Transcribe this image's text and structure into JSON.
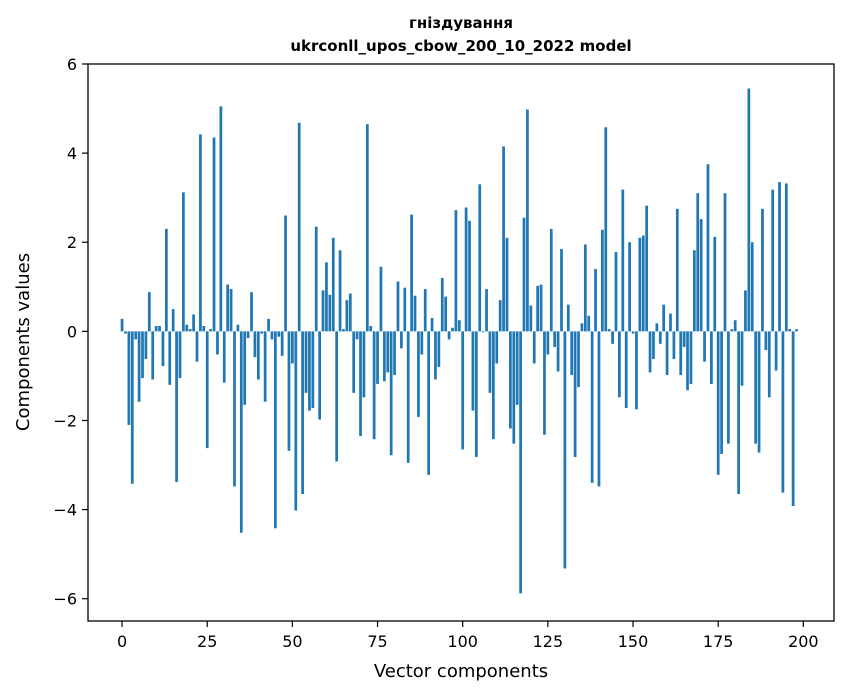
{
  "chart_data": {
    "type": "bar",
    "title": "гніздування",
    "subtitle": "ukrconll_upos_cbow_200_10_2022 model",
    "xlabel": "Vector components",
    "ylabel": "Components values",
    "xlim": [
      -10,
      209
    ],
    "ylim": [
      -6.5,
      6
    ],
    "xticks": [
      0,
      25,
      50,
      75,
      100,
      125,
      150,
      175,
      200
    ],
    "yticks": [
      -6,
      -4,
      -2,
      0,
      2,
      4,
      6
    ],
    "ytick_labels": [
      "−6",
      "−4",
      "−2",
      "0",
      "2",
      "4",
      "6"
    ],
    "bar_color": "#1f77b4",
    "series": [
      {
        "name": "values",
        "x_start": 0,
        "values": [
          0.28,
          -0.05,
          -2.1,
          -3.42,
          -0.18,
          -1.58,
          -1.05,
          -0.62,
          0.88,
          -1.08,
          0.12,
          0.12,
          -0.78,
          2.3,
          -1.2,
          0.5,
          -3.38,
          -1.05,
          3.12,
          0.15,
          0.05,
          0.38,
          -0.68,
          4.42,
          0.12,
          -2.62,
          0.05,
          4.35,
          -0.52,
          5.05,
          -1.15,
          1.05,
          0.95,
          -3.48,
          0.15,
          -4.52,
          -1.65,
          -0.15,
          0.88,
          -0.58,
          -1.08,
          -0.05,
          -1.58,
          0.28,
          -0.18,
          -4.42,
          -0.12,
          -0.55,
          2.6,
          -2.68,
          -0.72,
          -4.02,
          4.68,
          -3.65,
          -1.38,
          -1.78,
          -1.72,
          2.35,
          -1.98,
          0.92,
          1.55,
          0.82,
          2.1,
          -2.92,
          1.82,
          0.05,
          0.7,
          0.85,
          -1.38,
          -0.18,
          -2.35,
          -1.48,
          4.65,
          0.12,
          -2.42,
          -1.18,
          1.45,
          -1.12,
          -0.92,
          -2.78,
          -0.98,
          1.12,
          -0.38,
          0.98,
          -2.95,
          2.62,
          0.8,
          -1.92,
          -0.52,
          0.95,
          -3.22,
          0.3,
          -1.08,
          -0.8,
          1.2,
          0.78,
          -0.18,
          0.08,
          2.72,
          0.25,
          -2.65,
          2.78,
          2.48,
          -1.78,
          -2.82,
          3.3,
          -0.02,
          0.95,
          -1.38,
          -2.42,
          -0.72,
          0.7,
          4.15,
          2.1,
          -2.18,
          -2.52,
          -1.65,
          -5.88,
          2.55,
          4.98,
          0.58,
          -0.72,
          1.02,
          1.05,
          -2.32,
          -0.52,
          2.3,
          -0.35,
          -0.9,
          1.85,
          -5.32,
          0.6,
          -0.98,
          -2.82,
          -1.25,
          0.18,
          1.95,
          0.35,
          -3.4,
          1.4,
          -3.48,
          2.28,
          4.58,
          0.05,
          -0.28,
          1.78,
          -1.48,
          3.18,
          -1.72,
          2.0,
          -0.05,
          -1.75,
          2.1,
          2.15,
          2.82,
          -0.92,
          -0.62,
          0.18,
          -0.28,
          0.6,
          -0.98,
          0.4,
          -0.62,
          2.75,
          -0.98,
          -0.35,
          -1.32,
          -1.18,
          1.82,
          3.1,
          2.52,
          -0.68,
          3.75,
          -1.18,
          2.12,
          -3.22,
          -2.75,
          3.1,
          -2.52,
          0.05,
          0.25,
          -3.65,
          -1.22,
          0.92,
          5.45,
          2.0,
          -2.52,
          -2.72,
          2.75,
          -0.42,
          -1.48,
          3.18,
          -0.88,
          3.35,
          -3.62,
          3.32,
          0.05,
          -3.92,
          0.05
        ]
      }
    ]
  }
}
